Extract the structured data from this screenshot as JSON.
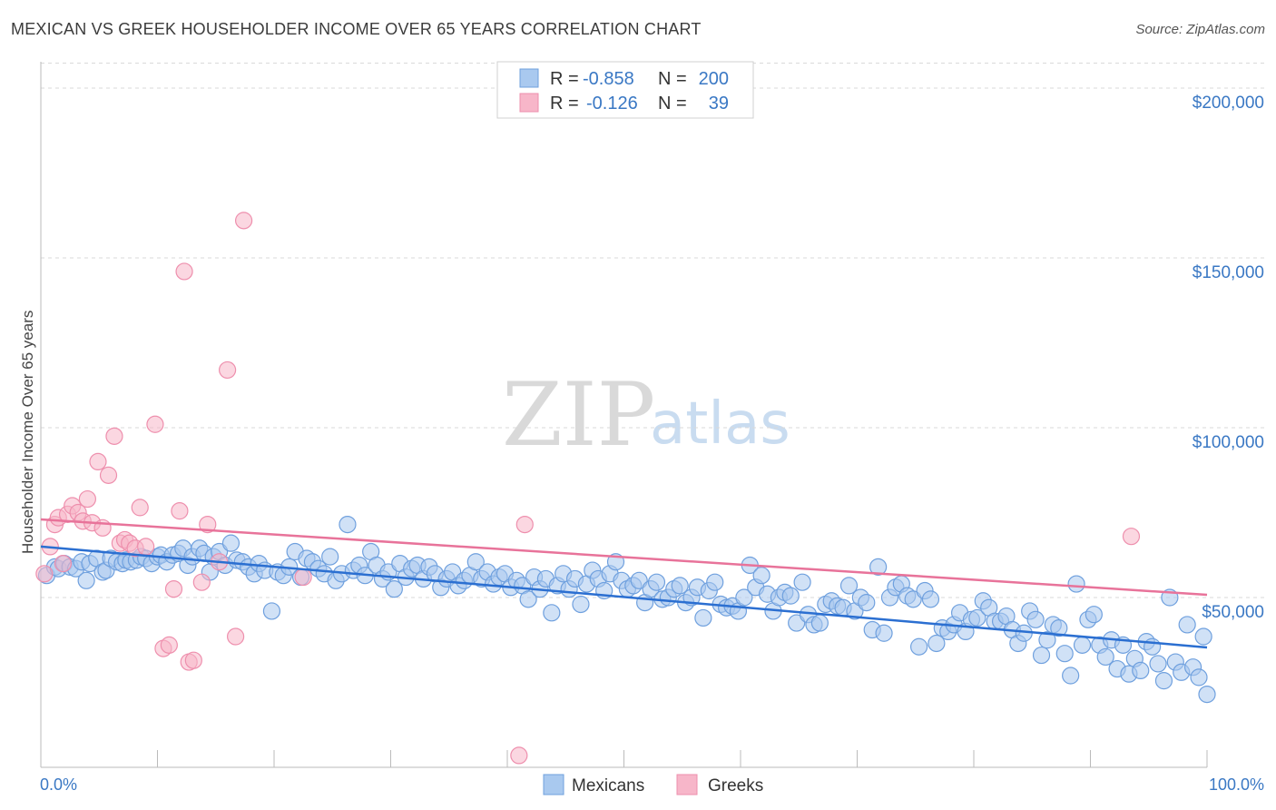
{
  "header": {
    "title": "MEXICAN VS GREEK HOUSEHOLDER INCOME OVER 65 YEARS CORRELATION CHART",
    "source": "Source: ZipAtlas.com"
  },
  "colors": {
    "mexicans_fill": "#a9c9ef",
    "mexicans_stroke": "#6fa0de",
    "mexicans_line": "#2b6fd1",
    "greeks_fill": "#f7b6c9",
    "greeks_stroke": "#ee8fad",
    "greeks_line": "#e8739a",
    "axis_text": "#3a78c4",
    "grid": "#d9d9d9"
  },
  "legend": {
    "r_label": "R =",
    "n_label": "N =",
    "mexicans_r": "-0.858",
    "mexicans_n": "200",
    "greeks_r": "-0.126",
    "greeks_n": "39"
  },
  "watermark": {
    "zip": "ZIP",
    "atlas": "atlas"
  },
  "chart_data": {
    "type": "scatter",
    "title": "MEXICAN VS GREEK HOUSEHOLDER INCOME OVER 65 YEARS CORRELATION CHART",
    "xlabel": "",
    "ylabel": "Householder Income Over 65 years",
    "xlim": [
      0,
      100
    ],
    "ylim": [
      0,
      210000
    ],
    "x_tick_labels": [
      "0.0%",
      "100.0%"
    ],
    "y_ticks": [
      50000,
      100000,
      150000,
      200000
    ],
    "y_tick_labels": [
      "$50,000",
      "$100,000",
      "$150,000",
      "$200,000"
    ],
    "grid": true,
    "legend_position": "top-center",
    "series": [
      {
        "name": "Mexicans",
        "r": -0.858,
        "n": 200,
        "trend": {
          "x": [
            0,
            100
          ],
          "y": [
            65000,
            35300
          ]
        },
        "points": [
          [
            0.5,
            56500
          ],
          [
            1.2,
            59000
          ],
          [
            1.5,
            58500
          ],
          [
            2.0,
            60000
          ],
          [
            2.5,
            59000
          ],
          [
            3.0,
            58500
          ],
          [
            3.5,
            60500
          ],
          [
            3.9,
            55000
          ],
          [
            4.2,
            60000
          ],
          [
            4.8,
            61500
          ],
          [
            5.3,
            57500
          ],
          [
            5.6,
            58000
          ],
          [
            6.0,
            61500
          ],
          [
            6.5,
            60500
          ],
          [
            7.0,
            60000
          ],
          [
            7.3,
            61000
          ],
          [
            7.7,
            60500
          ],
          [
            8.2,
            61000
          ],
          [
            8.6,
            62000
          ],
          [
            9.0,
            61500
          ],
          [
            9.5,
            60000
          ],
          [
            10.0,
            62000
          ],
          [
            10.3,
            62500
          ],
          [
            10.8,
            60500
          ],
          [
            11.3,
            62500
          ],
          [
            11.8,
            63000
          ],
          [
            12.2,
            64500
          ],
          [
            12.6,
            59500
          ],
          [
            13.0,
            62000
          ],
          [
            13.6,
            64500
          ],
          [
            14.0,
            63000
          ],
          [
            14.5,
            57500
          ],
          [
            14.8,
            62000
          ],
          [
            15.3,
            63500
          ],
          [
            15.8,
            59500
          ],
          [
            16.3,
            66000
          ],
          [
            16.8,
            61000
          ],
          [
            17.3,
            60500
          ],
          [
            17.8,
            59000
          ],
          [
            18.3,
            57000
          ],
          [
            18.7,
            60000
          ],
          [
            19.2,
            58000
          ],
          [
            19.8,
            46000
          ],
          [
            20.3,
            57500
          ],
          [
            20.8,
            56500
          ],
          [
            21.3,
            59000
          ],
          [
            21.8,
            63500
          ],
          [
            22.3,
            56000
          ],
          [
            22.8,
            61500
          ],
          [
            23.3,
            60500
          ],
          [
            23.8,
            58500
          ],
          [
            24.3,
            57000
          ],
          [
            24.8,
            62000
          ],
          [
            25.3,
            55000
          ],
          [
            25.8,
            57000
          ],
          [
            26.3,
            71500
          ],
          [
            26.8,
            58000
          ],
          [
            27.3,
            59500
          ],
          [
            27.8,
            56500
          ],
          [
            28.3,
            63500
          ],
          [
            28.8,
            59500
          ],
          [
            29.3,
            55500
          ],
          [
            29.8,
            57500
          ],
          [
            30.3,
            52500
          ],
          [
            30.8,
            60000
          ],
          [
            31.3,
            56000
          ],
          [
            31.8,
            58500
          ],
          [
            32.3,
            59500
          ],
          [
            32.8,
            55500
          ],
          [
            33.3,
            59000
          ],
          [
            33.8,
            57000
          ],
          [
            34.3,
            53000
          ],
          [
            34.8,
            55500
          ],
          [
            35.3,
            57500
          ],
          [
            35.8,
            53500
          ],
          [
            36.3,
            55000
          ],
          [
            36.8,
            56500
          ],
          [
            37.3,
            60500
          ],
          [
            37.8,
            55500
          ],
          [
            38.3,
            57500
          ],
          [
            38.8,
            54000
          ],
          [
            39.3,
            56000
          ],
          [
            39.8,
            57000
          ],
          [
            40.3,
            53000
          ],
          [
            40.8,
            55000
          ],
          [
            41.3,
            53500
          ],
          [
            41.8,
            49500
          ],
          [
            42.3,
            56000
          ],
          [
            42.8,
            52500
          ],
          [
            43.3,
            55500
          ],
          [
            43.8,
            45500
          ],
          [
            44.3,
            53500
          ],
          [
            44.8,
            57000
          ],
          [
            45.3,
            52500
          ],
          [
            45.8,
            55500
          ],
          [
            46.3,
            48000
          ],
          [
            46.8,
            54000
          ],
          [
            47.3,
            58000
          ],
          [
            47.8,
            55500
          ],
          [
            48.3,
            52000
          ],
          [
            48.8,
            57000
          ],
          [
            49.3,
            60500
          ],
          [
            49.8,
            55000
          ],
          [
            50.3,
            52500
          ],
          [
            50.8,
            53500
          ],
          [
            51.3,
            55000
          ],
          [
            51.8,
            48500
          ],
          [
            52.3,
            52500
          ],
          [
            52.8,
            54500
          ],
          [
            53.3,
            49500
          ],
          [
            53.8,
            50000
          ],
          [
            54.3,
            52500
          ],
          [
            54.8,
            53500
          ],
          [
            55.3,
            48500
          ],
          [
            55.8,
            50000
          ],
          [
            56.3,
            53000
          ],
          [
            56.8,
            44000
          ],
          [
            57.3,
            52000
          ],
          [
            57.8,
            54500
          ],
          [
            58.3,
            48000
          ],
          [
            58.8,
            47000
          ],
          [
            59.3,
            47500
          ],
          [
            59.8,
            46000
          ],
          [
            60.3,
            50000
          ],
          [
            60.8,
            59500
          ],
          [
            61.3,
            53000
          ],
          [
            61.8,
            56500
          ],
          [
            62.3,
            51000
          ],
          [
            62.8,
            46000
          ],
          [
            63.3,
            50000
          ],
          [
            63.8,
            51500
          ],
          [
            64.3,
            50500
          ],
          [
            64.8,
            42500
          ],
          [
            65.3,
            54500
          ],
          [
            65.8,
            45000
          ],
          [
            66.3,
            42000
          ],
          [
            66.8,
            42500
          ],
          [
            67.3,
            48000
          ],
          [
            67.8,
            49000
          ],
          [
            68.3,
            47500
          ],
          [
            68.8,
            47000
          ],
          [
            69.3,
            53500
          ],
          [
            69.8,
            46000
          ],
          [
            70.3,
            50000
          ],
          [
            70.8,
            48500
          ],
          [
            71.3,
            40500
          ],
          [
            71.8,
            59000
          ],
          [
            72.3,
            39500
          ],
          [
            72.8,
            50000
          ],
          [
            73.3,
            53000
          ],
          [
            73.8,
            54000
          ],
          [
            74.3,
            50500
          ],
          [
            74.8,
            49500
          ],
          [
            75.3,
            35500
          ],
          [
            75.8,
            52000
          ],
          [
            76.3,
            49500
          ],
          [
            76.8,
            36500
          ],
          [
            77.3,
            41000
          ],
          [
            77.8,
            40000
          ],
          [
            78.3,
            42000
          ],
          [
            78.8,
            45500
          ],
          [
            79.3,
            40000
          ],
          [
            79.8,
            43500
          ],
          [
            80.3,
            44000
          ],
          [
            80.8,
            49000
          ],
          [
            81.3,
            47000
          ],
          [
            81.8,
            43000
          ],
          [
            82.3,
            43000
          ],
          [
            82.8,
            44500
          ],
          [
            83.3,
            40500
          ],
          [
            83.8,
            36500
          ],
          [
            84.3,
            39500
          ],
          [
            84.8,
            46000
          ],
          [
            85.3,
            43500
          ],
          [
            85.8,
            33000
          ],
          [
            86.3,
            37500
          ],
          [
            86.8,
            42000
          ],
          [
            87.3,
            41000
          ],
          [
            87.8,
            33500
          ],
          [
            88.3,
            27000
          ],
          [
            88.8,
            54000
          ],
          [
            89.3,
            36000
          ],
          [
            89.8,
            43500
          ],
          [
            90.3,
            45000
          ],
          [
            90.8,
            36000
          ],
          [
            91.3,
            32500
          ],
          [
            91.8,
            37500
          ],
          [
            92.3,
            29000
          ],
          [
            92.8,
            36000
          ],
          [
            93.3,
            27500
          ],
          [
            93.8,
            32000
          ],
          [
            94.3,
            28500
          ],
          [
            94.8,
            37000
          ],
          [
            95.3,
            35500
          ],
          [
            95.8,
            30500
          ],
          [
            96.3,
            25500
          ],
          [
            96.8,
            50000
          ],
          [
            97.3,
            31000
          ],
          [
            97.8,
            28000
          ],
          [
            98.3,
            42000
          ],
          [
            98.8,
            29500
          ],
          [
            99.3,
            26500
          ],
          [
            99.7,
            38500
          ],
          [
            100.0,
            21500
          ]
        ]
      },
      {
        "name": "Greeks",
        "r": -0.126,
        "n": 39,
        "trend": {
          "x": [
            0,
            100
          ],
          "y": [
            73000,
            50800
          ]
        },
        "points": [
          [
            0.3,
            57000
          ],
          [
            0.8,
            65000
          ],
          [
            1.2,
            71500
          ],
          [
            1.5,
            73500
          ],
          [
            1.9,
            60000
          ],
          [
            2.3,
            74500
          ],
          [
            2.7,
            77000
          ],
          [
            3.2,
            75000
          ],
          [
            3.6,
            72500
          ],
          [
            4.0,
            79000
          ],
          [
            4.4,
            72000
          ],
          [
            4.9,
            90000
          ],
          [
            5.3,
            70500
          ],
          [
            5.8,
            86000
          ],
          [
            6.3,
            97500
          ],
          [
            6.8,
            66000
          ],
          [
            7.2,
            67000
          ],
          [
            7.6,
            66000
          ],
          [
            8.1,
            64500
          ],
          [
            8.5,
            76500
          ],
          [
            9.0,
            65000
          ],
          [
            9.8,
            101000
          ],
          [
            10.5,
            35000
          ],
          [
            11.0,
            36000
          ],
          [
            11.4,
            52500
          ],
          [
            11.9,
            75500
          ],
          [
            12.3,
            146000
          ],
          [
            12.7,
            31000
          ],
          [
            13.1,
            31500
          ],
          [
            13.8,
            54500
          ],
          [
            14.3,
            71500
          ],
          [
            15.3,
            60500
          ],
          [
            16.0,
            117000
          ],
          [
            16.7,
            38500
          ],
          [
            17.4,
            161000
          ],
          [
            22.5,
            56000
          ],
          [
            41.0,
            3500
          ],
          [
            41.5,
            71500
          ],
          [
            93.5,
            68000
          ]
        ]
      }
    ]
  },
  "bottom_legend": {
    "item1": "Mexicans",
    "item2": "Greeks"
  }
}
